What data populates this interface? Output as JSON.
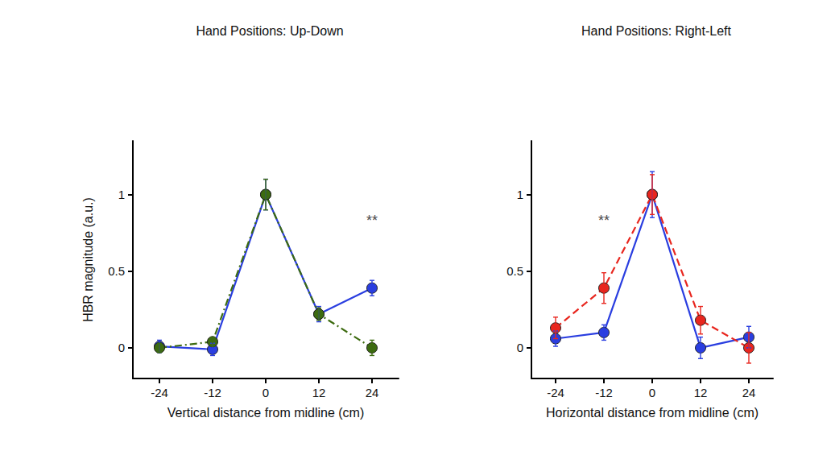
{
  "chart_data": [
    {
      "type": "line",
      "title": "Hand Positions: Up-Down",
      "x_label": "Vertical distance from midline (cm)",
      "y_label": "HBR magnitude (a.u.)",
      "x": [
        -24,
        -12,
        0,
        12,
        24
      ],
      "xlim": [
        -30,
        30
      ],
      "xticks": [
        -24,
        -12,
        0,
        12,
        24
      ],
      "ylim": [
        -0.2,
        1.35
      ],
      "yticks": [
        0,
        0.5,
        1
      ],
      "grid": false,
      "series": [
        {
          "color": "#2a3ee0",
          "line_style": "solid",
          "marker": "circle",
          "values": [
            0.01,
            -0.01,
            1.0,
            0.22,
            0.39
          ],
          "errors": [
            0.04,
            0.04,
            0.1,
            0.05,
            0.05
          ]
        },
        {
          "color": "#3d6b10",
          "line_style": "dashdot",
          "marker": "circle",
          "values": [
            0.0,
            0.04,
            1.0,
            0.22,
            0.0
          ],
          "errors": [
            0.03,
            0.03,
            0.1,
            0.04,
            0.05
          ]
        }
      ],
      "annotations": [
        {
          "text": "**",
          "x": 24,
          "y": 0.83
        }
      ]
    },
    {
      "type": "line",
      "title": "Hand Positions: Right-Left",
      "x_label": "Horizontal distance from midline (cm)",
      "x": [
        -24,
        -12,
        0,
        12,
        24
      ],
      "xlim": [
        -30,
        30
      ],
      "xticks": [
        -24,
        -12,
        0,
        12,
        24
      ],
      "ylim": [
        -0.2,
        1.35
      ],
      "yticks": [
        0,
        0.5,
        1
      ],
      "grid": false,
      "series": [
        {
          "color": "#2a3ee0",
          "line_style": "solid",
          "marker": "circle",
          "values": [
            0.06,
            0.1,
            1.0,
            0.0,
            0.07
          ],
          "errors": [
            0.05,
            0.05,
            0.15,
            0.07,
            0.07
          ]
        },
        {
          "color": "#e8261e",
          "line_style": "dashed",
          "marker": "circle",
          "values": [
            0.13,
            0.39,
            1.0,
            0.18,
            0.0
          ],
          "errors": [
            0.07,
            0.1,
            0.13,
            0.09,
            0.1
          ]
        }
      ],
      "annotations": [
        {
          "text": "**",
          "x": -12,
          "y": 0.83
        }
      ]
    }
  ]
}
